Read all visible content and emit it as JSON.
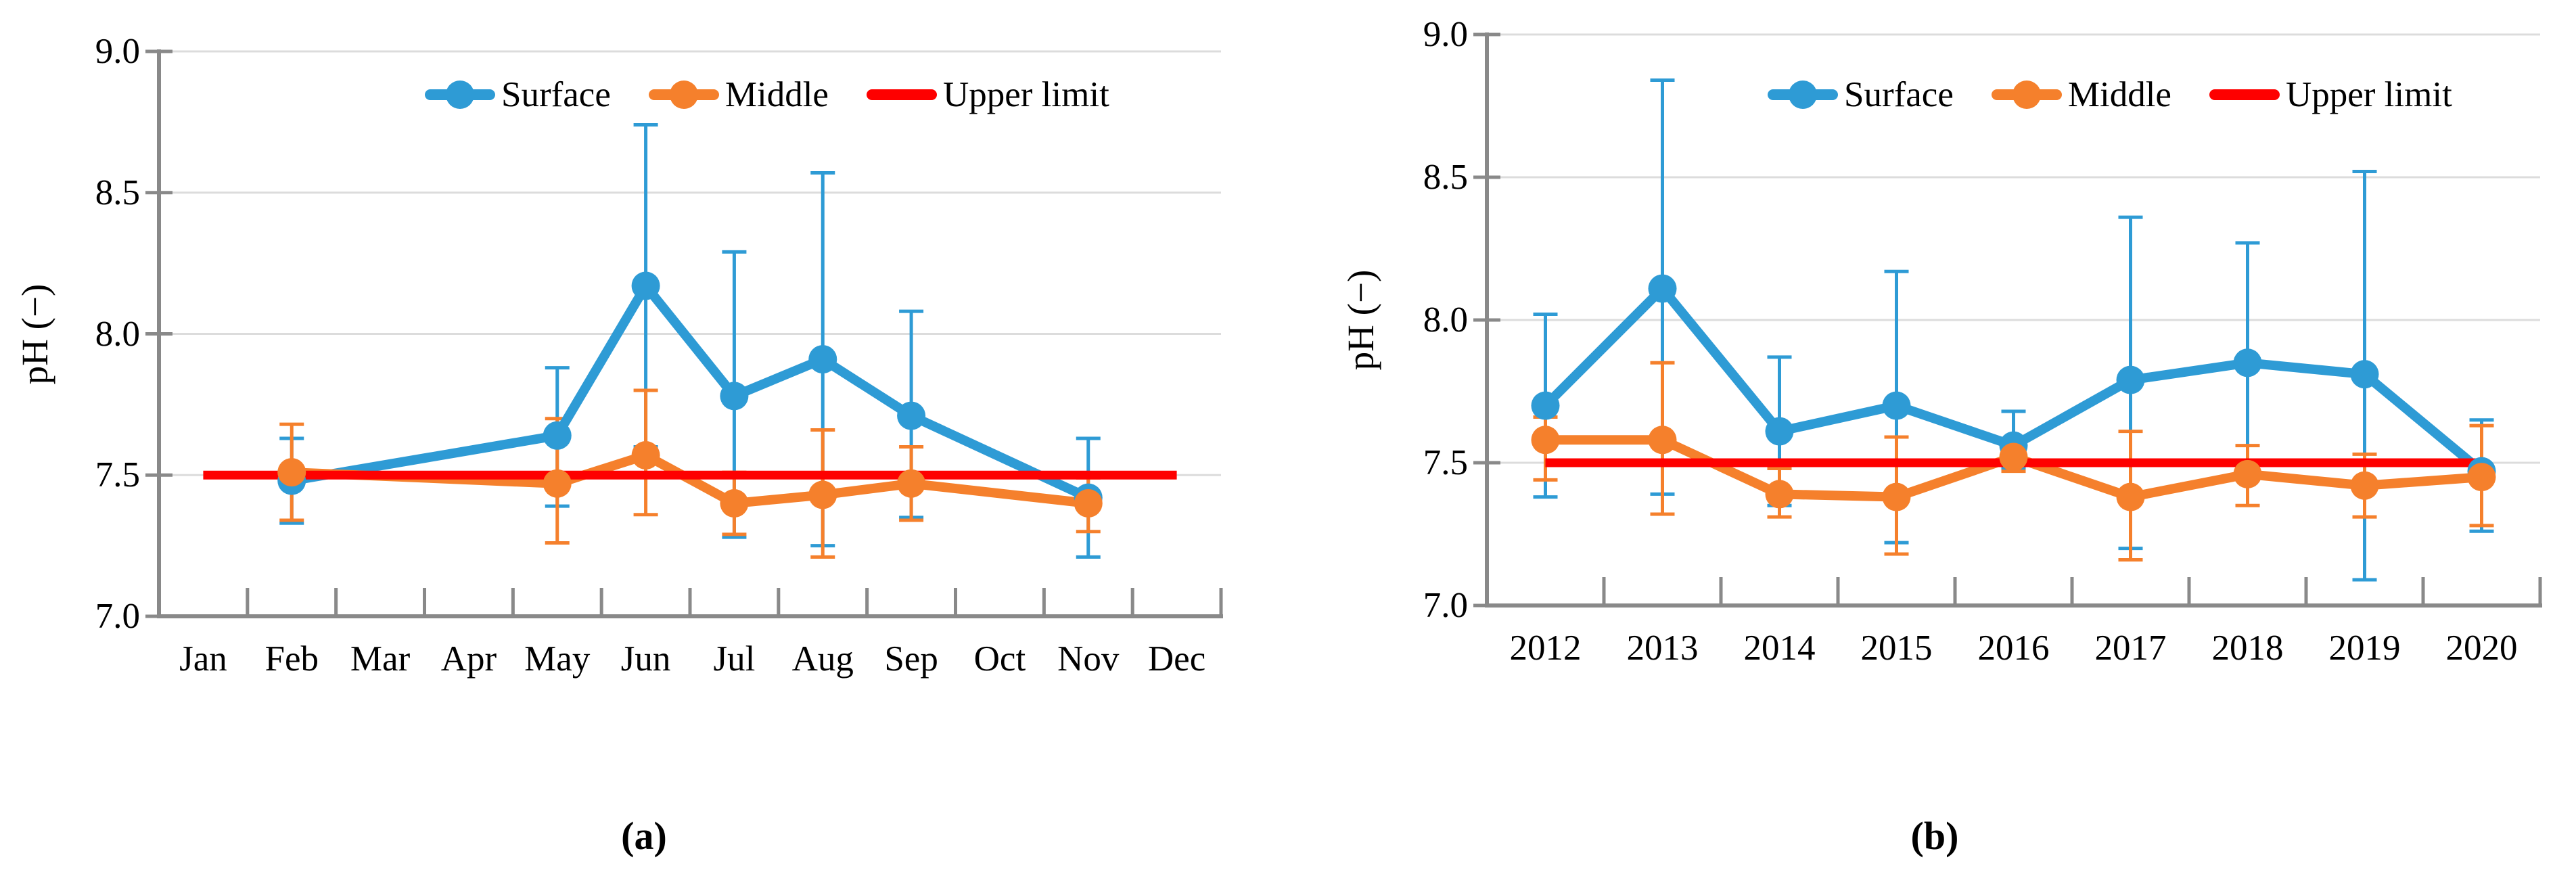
{
  "figure": {
    "background": "#FFFFFF"
  },
  "colors": {
    "surface": "#2E9BD5",
    "middle": "#F5802C",
    "upper_limit": "#FE0000",
    "axis": "#898989",
    "grid": "#DCDCDC",
    "text": "#000000"
  },
  "chart_data": [
    {
      "type": "line",
      "panel": "a",
      "caption": "(a)",
      "title": "",
      "xlabel": "",
      "ylabel": "pH (−)",
      "ylim": [
        7.0,
        9.0
      ],
      "y_tick_values": [
        7.0,
        7.5,
        8.0,
        8.5,
        9.0
      ],
      "y_tick_labels": [
        "7.0",
        "7.5",
        "8.0",
        "8.5",
        "9.0"
      ],
      "grid": "horizontal",
      "legend_position": "top",
      "legend_entries": [
        "Surface",
        "Middle",
        "Upper limit"
      ],
      "categories": [
        "Jan",
        "Feb",
        "Mar",
        "Apr",
        "May",
        "Jun",
        "Jul",
        "Aug",
        "Sep",
        "Oct",
        "Nov",
        "Dec"
      ],
      "series": [
        {
          "name": "Surface",
          "color": "surface",
          "values": [
            null,
            7.48,
            null,
            null,
            7.64,
            8.17,
            7.78,
            7.91,
            7.71,
            null,
            7.42,
            null
          ],
          "err_low": [
            null,
            7.33,
            null,
            null,
            7.39,
            7.6,
            7.28,
            7.25,
            7.35,
            null,
            7.21,
            null
          ],
          "err_high": [
            null,
            7.63,
            null,
            null,
            7.88,
            8.74,
            8.29,
            8.57,
            8.08,
            null,
            7.63,
            null
          ]
        },
        {
          "name": "Middle",
          "color": "middle",
          "values": [
            null,
            7.51,
            null,
            null,
            7.47,
            7.57,
            7.4,
            7.43,
            7.47,
            null,
            7.4,
            null
          ],
          "err_low": [
            null,
            7.34,
            null,
            null,
            7.26,
            7.36,
            7.29,
            7.21,
            7.34,
            null,
            7.3,
            null
          ],
          "err_high": [
            null,
            7.68,
            null,
            null,
            7.7,
            7.8,
            7.51,
            7.66,
            7.6,
            null,
            7.49,
            null
          ]
        }
      ],
      "reference_line": {
        "name": "Upper limit",
        "color": "upper_limit",
        "value": 7.5,
        "span_categories": [
          "Jan",
          "Dec"
        ]
      }
    },
    {
      "type": "line",
      "panel": "b",
      "caption": "(b)",
      "title": "",
      "xlabel": "",
      "ylabel": "pH (−)",
      "ylim": [
        7.0,
        9.0
      ],
      "y_tick_values": [
        7.0,
        7.5,
        8.0,
        8.5,
        9.0
      ],
      "y_tick_labels": [
        "7.0",
        "7.5",
        "8.0",
        "8.5",
        "9.0"
      ],
      "grid": "horizontal",
      "legend_position": "top",
      "legend_entries": [
        "Surface",
        "Middle",
        "Upper limit"
      ],
      "categories": [
        "2012",
        "2013",
        "2014",
        "2015",
        "2016",
        "2017",
        "2018",
        "2019",
        "2020"
      ],
      "series": [
        {
          "name": "Surface",
          "color": "surface",
          "values": [
            7.7,
            8.11,
            7.61,
            7.7,
            7.56,
            7.79,
            7.85,
            7.81,
            7.47
          ],
          "err_low": [
            7.38,
            7.39,
            7.35,
            7.22,
            7.48,
            7.2,
            7.44,
            7.09,
            7.26
          ],
          "err_high": [
            8.02,
            8.84,
            7.87,
            8.17,
            7.68,
            8.36,
            8.27,
            8.52,
            7.65
          ]
        },
        {
          "name": "Middle",
          "color": "middle",
          "values": [
            7.58,
            7.58,
            7.39,
            7.38,
            7.52,
            7.38,
            7.46,
            7.42,
            7.45
          ],
          "err_low": [
            7.44,
            7.32,
            7.31,
            7.18,
            7.47,
            7.16,
            7.35,
            7.31,
            7.28
          ],
          "err_high": [
            7.66,
            7.85,
            7.48,
            7.59,
            7.58,
            7.61,
            7.56,
            7.53,
            7.63
          ]
        }
      ],
      "reference_line": {
        "name": "Upper limit",
        "color": "upper_limit",
        "value": 7.5,
        "span_categories": [
          "2012",
          "2020"
        ]
      }
    }
  ]
}
